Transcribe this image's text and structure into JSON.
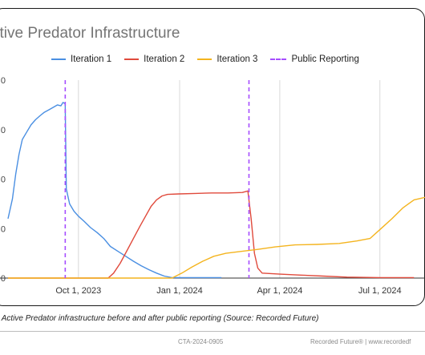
{
  "chart_data": {
    "type": "line",
    "title": "ctive Predator Infrastructure",
    "xlabel": "",
    "ylabel": "",
    "x_tick_labels": [
      "Oct 1, 2023",
      "Jan 1, 2024",
      "Apr 1, 2024",
      "Jul 1, 2024"
    ],
    "x_ticks": [
      "2023-10-01",
      "2024-01-01",
      "2024-04-01",
      "2024-07-01"
    ],
    "y_tick_labels": [
      "0",
      "0",
      "0",
      "0",
      "0"
    ],
    "y_ticks": [
      0,
      1,
      2,
      3,
      4
    ],
    "xlim": [
      "2023-07-29",
      "2024-08-11"
    ],
    "ylim": [
      0,
      4
    ],
    "grid": "vertical",
    "legend": "top",
    "series": [
      {
        "name": "Iteration 1",
        "color": "#4a8fe2",
        "style": "solid",
        "points": [
          [
            "2023-07-29",
            1.2
          ],
          [
            "2023-08-02",
            1.6
          ],
          [
            "2023-08-05",
            2.1
          ],
          [
            "2023-08-08",
            2.5
          ],
          [
            "2023-08-11",
            2.8
          ],
          [
            "2023-08-15",
            2.95
          ],
          [
            "2023-08-19",
            3.1
          ],
          [
            "2023-08-23",
            3.2
          ],
          [
            "2023-08-27",
            3.28
          ],
          [
            "2023-08-31",
            3.35
          ],
          [
            "2023-09-04",
            3.4
          ],
          [
            "2023-09-08",
            3.45
          ],
          [
            "2023-09-12",
            3.5
          ],
          [
            "2023-09-15",
            3.48
          ],
          [
            "2023-09-17",
            3.55
          ],
          [
            "2023-09-19",
            3.52
          ],
          [
            "2023-09-20",
            1.8
          ],
          [
            "2023-09-23",
            1.5
          ],
          [
            "2023-09-27",
            1.35
          ],
          [
            "2023-10-01",
            1.25
          ],
          [
            "2023-10-06",
            1.15
          ],
          [
            "2023-10-12",
            1.02
          ],
          [
            "2023-10-18",
            0.92
          ],
          [
            "2023-10-24",
            0.8
          ],
          [
            "2023-10-30",
            0.64
          ],
          [
            "2023-11-06",
            0.54
          ],
          [
            "2023-11-13",
            0.44
          ],
          [
            "2023-11-20",
            0.34
          ],
          [
            "2023-11-27",
            0.25
          ],
          [
            "2023-12-04",
            0.17
          ],
          [
            "2023-12-11",
            0.1
          ],
          [
            "2023-12-18",
            0.04
          ],
          [
            "2023-12-25",
            0.01
          ],
          [
            "2024-01-10",
            0.01
          ],
          [
            "2024-02-08",
            0.01
          ]
        ]
      },
      {
        "name": "Iteration 2",
        "color": "#e04a3c",
        "style": "solid",
        "points": [
          [
            "2023-07-29",
            0.0
          ],
          [
            "2023-10-28",
            0.0
          ],
          [
            "2023-11-02",
            0.1
          ],
          [
            "2023-11-08",
            0.3
          ],
          [
            "2023-11-14",
            0.55
          ],
          [
            "2023-11-20",
            0.8
          ],
          [
            "2023-11-26",
            1.05
          ],
          [
            "2023-12-01",
            1.25
          ],
          [
            "2023-12-06",
            1.45
          ],
          [
            "2023-12-11",
            1.58
          ],
          [
            "2023-12-16",
            1.66
          ],
          [
            "2023-12-21",
            1.69
          ],
          [
            "2023-12-31",
            1.7
          ],
          [
            "2024-01-15",
            1.71
          ],
          [
            "2024-01-30",
            1.72
          ],
          [
            "2024-02-14",
            1.72
          ],
          [
            "2024-02-27",
            1.73
          ],
          [
            "2024-03-03",
            1.76
          ],
          [
            "2024-03-06",
            1.2
          ],
          [
            "2024-03-09",
            0.5
          ],
          [
            "2024-03-12",
            0.2
          ],
          [
            "2024-03-16",
            0.1
          ],
          [
            "2024-04-01",
            0.08
          ],
          [
            "2024-04-20",
            0.06
          ],
          [
            "2024-05-10",
            0.04
          ],
          [
            "2024-06-01",
            0.02
          ],
          [
            "2024-07-01",
            0.01
          ],
          [
            "2024-08-01",
            0.01
          ]
        ]
      },
      {
        "name": "Iteration 3",
        "color": "#f4b41e",
        "style": "solid",
        "points": [
          [
            "2023-07-29",
            0.0
          ],
          [
            "2023-12-25",
            0.0
          ],
          [
            "2024-01-03",
            0.1
          ],
          [
            "2024-01-12",
            0.22
          ],
          [
            "2024-01-22",
            0.34
          ],
          [
            "2024-02-01",
            0.44
          ],
          [
            "2024-02-12",
            0.5
          ],
          [
            "2024-02-26",
            0.54
          ],
          [
            "2024-03-12",
            0.58
          ],
          [
            "2024-03-28",
            0.63
          ],
          [
            "2024-04-15",
            0.67
          ],
          [
            "2024-05-05",
            0.68
          ],
          [
            "2024-05-25",
            0.7
          ],
          [
            "2024-06-10",
            0.75
          ],
          [
            "2024-06-22",
            0.8
          ],
          [
            "2024-07-02",
            1.0
          ],
          [
            "2024-07-12",
            1.2
          ],
          [
            "2024-07-22",
            1.42
          ],
          [
            "2024-08-01",
            1.58
          ],
          [
            "2024-08-11",
            1.63
          ]
        ]
      },
      {
        "name": "Public Reporting",
        "color": "#a64dff",
        "style": "dashed",
        "events": [
          "2023-09-19",
          "2024-03-04"
        ]
      }
    ]
  },
  "caption": {
    "figure_label": ":",
    "text": " Active Predator infrastructure before and after public reporting (Source: Recorded Future)"
  },
  "footer": {
    "document_id": "CTA-2024-0905",
    "brand_text": "Recorded Future® | www.recordedf"
  }
}
